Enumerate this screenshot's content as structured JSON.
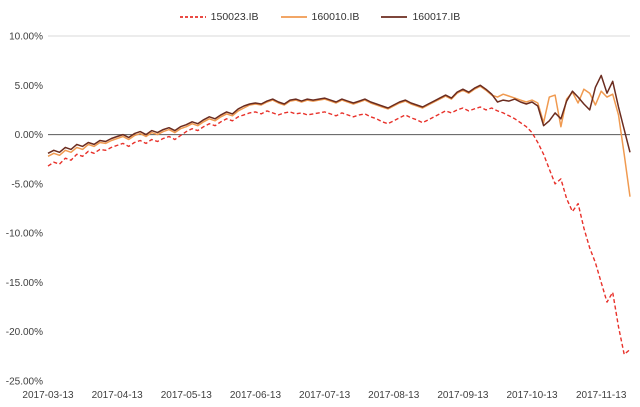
{
  "chart_data": {
    "type": "line",
    "title": "",
    "xlabel": "",
    "ylabel": "",
    "ylim": [
      -25,
      10
    ],
    "grid": "top-border-and-zero-line-only",
    "legend_position": "top-center",
    "axis_color": "#595959",
    "top_border_color": "#d9d9d9",
    "y_ticks": [
      {
        "value": 10,
        "label": "10.00%"
      },
      {
        "value": 5,
        "label": "5.00%"
      },
      {
        "value": 0,
        "label": "0.00%"
      },
      {
        "value": -5,
        "label": "-5.00%"
      },
      {
        "value": -10,
        "label": "-10.00%"
      },
      {
        "value": -15,
        "label": "-15.00%"
      },
      {
        "value": -20,
        "label": "-20.00%"
      },
      {
        "value": -25,
        "label": "-25.00%"
      }
    ],
    "x_tick_labels": [
      "2017-03-13",
      "2017-04-13",
      "2017-05-13",
      "2017-06-13",
      "2017-07-13",
      "2017-08-13",
      "2017-09-13",
      "2017-10-13",
      "2017-11-13"
    ],
    "x_tick_step": 12,
    "series": [
      {
        "name": "150023.IB",
        "color": "#e8312a",
        "dash": "4 2.5",
        "values": [
          -3.2,
          -2.8,
          -3.0,
          -2.4,
          -2.6,
          -2.0,
          -2.2,
          -1.7,
          -1.9,
          -1.5,
          -1.6,
          -1.3,
          -1.1,
          -0.9,
          -1.2,
          -0.8,
          -0.6,
          -0.9,
          -0.5,
          -0.7,
          -0.4,
          -0.2,
          -0.5,
          -0.1,
          0.3,
          0.6,
          0.4,
          0.8,
          1.1,
          0.9,
          1.3,
          1.6,
          1.4,
          1.8,
          2.0,
          2.2,
          2.3,
          2.1,
          2.4,
          2.2,
          2.0,
          2.2,
          2.3,
          2.1,
          2.2,
          2.0,
          2.1,
          2.2,
          2.3,
          2.1,
          1.9,
          2.2,
          2.0,
          1.8,
          2.0,
          2.1,
          1.8,
          1.6,
          1.3,
          1.1,
          1.4,
          1.7,
          2.0,
          1.7,
          1.5,
          1.2,
          1.5,
          1.8,
          2.1,
          2.4,
          2.2,
          2.5,
          2.7,
          2.4,
          2.6,
          2.8,
          2.5,
          2.7,
          2.4,
          2.2,
          1.9,
          1.6,
          1.2,
          0.8,
          0.2,
          -0.8,
          -2.0,
          -3.5,
          -5.0,
          -4.5,
          -6.5,
          -7.8,
          -7.0,
          -9.5,
          -11.5,
          -13.0,
          -15.0,
          -17.0,
          -16.0,
          -19.5,
          -22.3,
          -21.8
        ]
      },
      {
        "name": "160010.IB",
        "color": "#f09a50",
        "dash": "",
        "values": [
          -2.2,
          -1.9,
          -2.1,
          -1.6,
          -1.8,
          -1.3,
          -1.5,
          -1.0,
          -1.2,
          -0.8,
          -0.9,
          -0.6,
          -0.4,
          -0.2,
          -0.5,
          -0.1,
          0.1,
          -0.2,
          0.2,
          0.0,
          0.3,
          0.5,
          0.2,
          0.6,
          0.8,
          1.1,
          0.9,
          1.3,
          1.6,
          1.4,
          1.8,
          2.1,
          1.9,
          2.4,
          2.7,
          3.0,
          3.1,
          3.0,
          3.3,
          3.5,
          3.2,
          3.0,
          3.4,
          3.5,
          3.3,
          3.5,
          3.4,
          3.5,
          3.6,
          3.4,
          3.2,
          3.5,
          3.3,
          3.1,
          3.3,
          3.5,
          3.2,
          3.0,
          2.8,
          2.6,
          2.9,
          3.2,
          3.4,
          3.1,
          2.9,
          2.7,
          3.0,
          3.3,
          3.6,
          3.9,
          3.6,
          4.2,
          4.5,
          4.2,
          4.6,
          4.9,
          4.5,
          4.0,
          3.8,
          4.1,
          3.9,
          3.7,
          3.5,
          3.3,
          3.5,
          3.2,
          1.2,
          3.8,
          4.0,
          0.8,
          3.6,
          4.3,
          3.2,
          4.6,
          4.2,
          3.0,
          4.4,
          3.8,
          4.1,
          2.0,
          -2.0,
          -6.3
        ]
      },
      {
        "name": "160017.IB",
        "color": "#6b2c1f",
        "dash": "",
        "values": [
          -1.9,
          -1.6,
          -1.8,
          -1.3,
          -1.5,
          -1.0,
          -1.2,
          -0.8,
          -1.0,
          -0.6,
          -0.7,
          -0.4,
          -0.2,
          0.0,
          -0.3,
          0.1,
          0.3,
          0.0,
          0.4,
          0.2,
          0.5,
          0.7,
          0.4,
          0.8,
          1.0,
          1.3,
          1.1,
          1.5,
          1.8,
          1.6,
          2.0,
          2.3,
          2.1,
          2.6,
          2.9,
          3.1,
          3.2,
          3.1,
          3.4,
          3.6,
          3.3,
          3.1,
          3.5,
          3.6,
          3.4,
          3.6,
          3.5,
          3.6,
          3.7,
          3.5,
          3.3,
          3.6,
          3.4,
          3.2,
          3.4,
          3.6,
          3.3,
          3.1,
          2.9,
          2.7,
          3.0,
          3.3,
          3.5,
          3.2,
          3.0,
          2.8,
          3.1,
          3.4,
          3.7,
          4.0,
          3.7,
          4.3,
          4.6,
          4.3,
          4.7,
          5.0,
          4.6,
          4.1,
          3.3,
          3.5,
          3.4,
          3.6,
          3.3,
          3.1,
          3.3,
          2.9,
          0.9,
          1.4,
          2.2,
          1.6,
          3.4,
          4.4,
          3.8,
          3.1,
          2.5,
          4.8,
          6.0,
          4.2,
          5.4,
          2.8,
          0.5,
          -1.8
        ]
      }
    ]
  }
}
